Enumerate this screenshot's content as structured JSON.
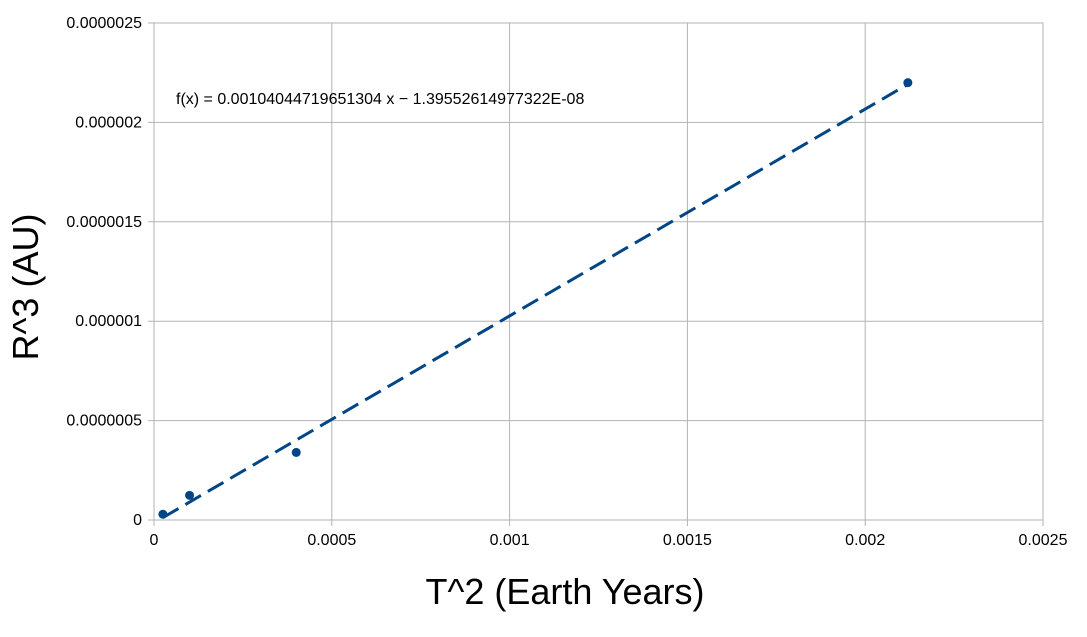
{
  "chart_data": {
    "type": "scatter",
    "title": "",
    "xlabel": "T^2 (Earth Years)",
    "ylabel": "R^3 (AU)",
    "xlim": [
      0,
      0.0025
    ],
    "ylim": [
      0,
      2.5e-06
    ],
    "x_ticks": [
      "0",
      "0.0005",
      "0.001",
      "0.0015",
      "0.002",
      "0.0025"
    ],
    "x_tick_values": [
      0,
      0.0005,
      0.001,
      0.0015,
      0.002,
      0.0025
    ],
    "y_ticks": [
      "0",
      "0.0000005",
      "0.000001",
      "0.0000015",
      "0.000002",
      "0.0000025"
    ],
    "y_tick_values": [
      0,
      5e-07,
      1e-06,
      1.5e-06,
      2e-06,
      2.5e-06
    ],
    "grid": true,
    "series": [
      {
        "x": [
          2.5e-05,
          0.0001,
          0.0004,
          0.00212
        ],
        "y": [
          2.9e-08,
          1.24e-07,
          3.4e-07,
          2.2e-06
        ]
      }
    ],
    "trendline": {
      "type": "linear",
      "slope": 0.00104044719651304,
      "intercept": -1.39552614977322e-08,
      "x_range": [
        2.5e-05,
        0.00212
      ],
      "equation_label": "f(x) = 0.00104044719651304 x − 1.39552614977322E-08"
    },
    "colors": {
      "series": "#004586",
      "grid": "#b3b3b3",
      "text": "#000000"
    }
  }
}
